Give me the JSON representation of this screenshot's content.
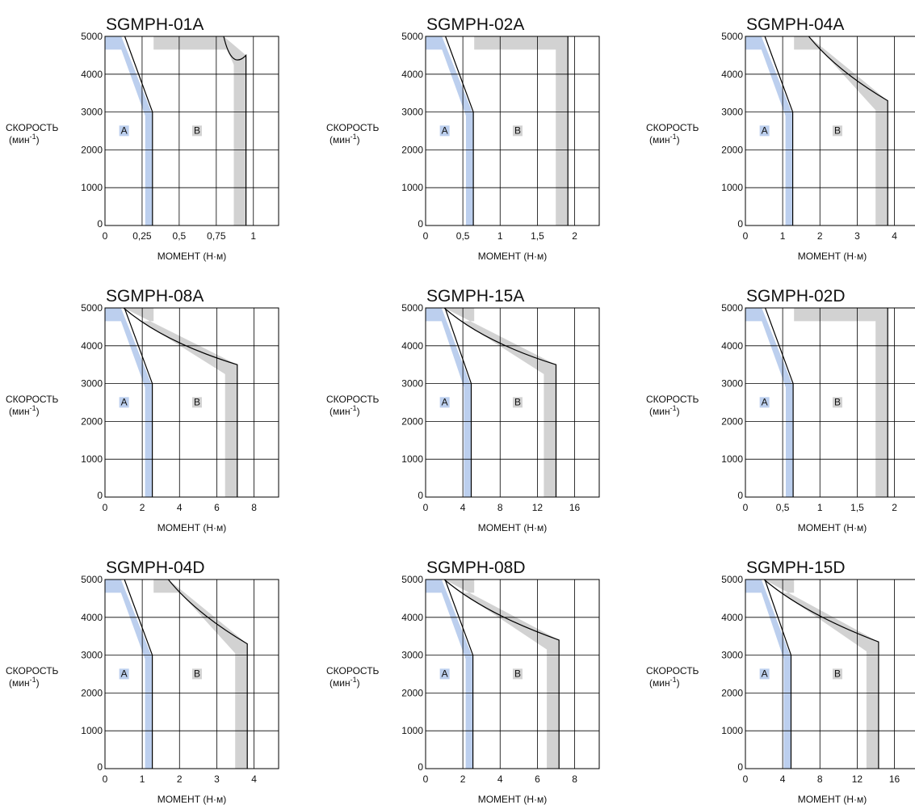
{
  "chart_data": [
    {
      "type": "area",
      "title": "SGMPH-01A",
      "xticks": [
        "0",
        "0,25",
        "0,5",
        "0,75",
        "1"
      ],
      "xtick_values": [
        0,
        0.25,
        0.5,
        0.75,
        1
      ],
      "xlim": [
        0,
        1.17
      ],
      "yticks": [
        "0",
        "1000",
        "2000",
        "3000",
        "4000",
        "5000"
      ],
      "ylim": [
        0,
        5000
      ],
      "ylabel": "СКОРОСТЬ",
      "ylabel_unit": "(мин",
      "ylabel_exp": "-1",
      "ylabel_close": ")",
      "xlabel": "МОМЕНТ (Н·м)",
      "regions": {
        "a": "A",
        "b": "B"
      },
      "rated_torque": 0.32,
      "peak_torque": 0.95,
      "peak_knee_speed": 4500,
      "peak_top_torque": 0.8,
      "rated_top_torque": 0.16,
      "a_top_end": 0.11
    },
    {
      "type": "area",
      "title": "SGMPH-02A",
      "xticks": [
        "0",
        "0,5",
        "1",
        "1,5",
        "2"
      ],
      "xtick_values": [
        0,
        0.5,
        1,
        1.5,
        2
      ],
      "xlim": [
        0,
        2.33
      ],
      "yticks": [
        "0",
        "1000",
        "2000",
        "3000",
        "4000",
        "5000"
      ],
      "ylim": [
        0,
        5000
      ],
      "ylabel": "СКОРОСТЬ",
      "ylabel_unit": "(мин",
      "ylabel_exp": "-1",
      "ylabel_close": ")",
      "xlabel": "МОМЕНТ (Н·м)",
      "regions": {
        "a": "A",
        "b": "B"
      },
      "rated_torque": 0.64,
      "peak_torque": 1.91,
      "peak_knee_speed": 5000,
      "peak_top_torque": 1.91,
      "rated_top_torque": 0.32,
      "a_top_end": 0.22
    },
    {
      "type": "area",
      "title": "SGMPH-04A",
      "xticks": [
        "0",
        "1",
        "2",
        "3",
        "4"
      ],
      "xtick_values": [
        0,
        1,
        2,
        3,
        4
      ],
      "xlim": [
        0,
        4.66
      ],
      "yticks": [
        "0",
        "1000",
        "2000",
        "3000",
        "4000",
        "5000"
      ],
      "ylim": [
        0,
        5000
      ],
      "ylabel": "СКОРОСТЬ",
      "ylabel_unit": "(мин",
      "ylabel_exp": "-1",
      "ylabel_close": ")",
      "xlabel": "МОМЕНТ (Н·м)",
      "regions": {
        "a": "A",
        "b": "B"
      },
      "rated_torque": 1.27,
      "peak_torque": 3.82,
      "peak_knee_speed": 3300,
      "peak_top_torque": 1.7,
      "rated_top_torque": 0.75,
      "a_top_end": 0.43
    },
    {
      "type": "area",
      "title": "SGMPH-08A",
      "xticks": [
        "0",
        "2",
        "4",
        "6",
        "8"
      ],
      "xtick_values": [
        0,
        2,
        4,
        6,
        8
      ],
      "xlim": [
        0,
        9.32
      ],
      "yticks": [
        "0",
        "1000",
        "2000",
        "3000",
        "4000",
        "5000"
      ],
      "ylim": [
        0,
        5000
      ],
      "ylabel": "СКОРОСТЬ",
      "ylabel_unit": "(мин",
      "ylabel_exp": "-1",
      "ylabel_close": ")",
      "xlabel": "МОМЕНТ (Н·м)",
      "regions": {
        "a": "A",
        "b": "B"
      },
      "rated_torque": 2.54,
      "peak_torque": 7.1,
      "peak_knee_speed": 3500,
      "peak_top_torque": 1.0,
      "rated_top_torque": 1.2,
      "a_top_end": 0.86
    },
    {
      "type": "area",
      "title": "SGMPH-15A",
      "xticks": [
        "0",
        "4",
        "8",
        "12",
        "16"
      ],
      "xtick_values": [
        0,
        4,
        8,
        12,
        16
      ],
      "xlim": [
        0,
        18.64
      ],
      "yticks": [
        "0",
        "1000",
        "2000",
        "3000",
        "4000",
        "5000"
      ],
      "ylim": [
        0,
        5000
      ],
      "ylabel": "СКОРОСТЬ",
      "ylabel_unit": "(мин",
      "ylabel_exp": "-1",
      "ylabel_close": ")",
      "xlabel": "МОМЕНТ (Н·м)",
      "regions": {
        "a": "A",
        "b": "B"
      },
      "rated_torque": 4.9,
      "peak_torque": 14.0,
      "peak_knee_speed": 3500,
      "peak_top_torque": 2.0,
      "rated_top_torque": 2.4,
      "a_top_end": 1.72
    },
    {
      "type": "area",
      "title": "SGMPH-02D",
      "xticks": [
        "0",
        "0,5",
        "1",
        "1,5",
        "2"
      ],
      "xtick_values": [
        0,
        0.5,
        1,
        1.5,
        2
      ],
      "xlim": [
        0,
        2.33
      ],
      "yticks": [
        "0",
        "1000",
        "2000",
        "3000",
        "4000",
        "5000"
      ],
      "ylim": [
        0,
        5000
      ],
      "ylabel": "СКОРОСТЬ",
      "ylabel_unit": "(мин",
      "ylabel_exp": "-1",
      "ylabel_close": ")",
      "xlabel": "МОМЕНТ (Н·м)",
      "regions": {
        "a": "A",
        "b": "B"
      },
      "rated_torque": 0.64,
      "peak_torque": 1.91,
      "peak_knee_speed": 5000,
      "peak_top_torque": 1.91,
      "rated_top_torque": 0.32,
      "a_top_end": 0.22
    },
    {
      "type": "area",
      "title": "SGMPH-04D",
      "xticks": [
        "0",
        "1",
        "2",
        "3",
        "4"
      ],
      "xtick_values": [
        0,
        1,
        2,
        3,
        4
      ],
      "xlim": [
        0,
        4.66
      ],
      "yticks": [
        "0",
        "1000",
        "2000",
        "3000",
        "4000",
        "5000"
      ],
      "ylim": [
        0,
        5000
      ],
      "ylabel": "СКОРОСТЬ",
      "ylabel_unit": "(мин",
      "ylabel_exp": "-1",
      "ylabel_close": ")",
      "xlabel": "МОМЕНТ (Н·м)",
      "regions": {
        "a": "A",
        "b": "B"
      },
      "rated_torque": 1.27,
      "peak_torque": 3.82,
      "peak_knee_speed": 3300,
      "peak_top_torque": 1.7,
      "rated_top_torque": 0.75,
      "a_top_end": 0.43
    },
    {
      "type": "area",
      "title": "SGMPH-08D",
      "xticks": [
        "0",
        "2",
        "4",
        "6",
        "8"
      ],
      "xtick_values": [
        0,
        2,
        4,
        6,
        8
      ],
      "xlim": [
        0,
        9.32
      ],
      "yticks": [
        "0",
        "1000",
        "2000",
        "3000",
        "4000",
        "5000"
      ],
      "ylim": [
        0,
        5000
      ],
      "ylabel": "СКОРОСТЬ",
      "ylabel_unit": "(мин",
      "ylabel_exp": "-1",
      "ylabel_close": ")",
      "xlabel": "МОМЕНТ (Н·м)",
      "regions": {
        "a": "A",
        "b": "B"
      },
      "rated_torque": 2.54,
      "peak_torque": 7.16,
      "peak_knee_speed": 3400,
      "peak_top_torque": 1.0,
      "rated_top_torque": 1.2,
      "a_top_end": 0.86
    },
    {
      "type": "area",
      "title": "SGMPH-15D",
      "xticks": [
        "0",
        "4",
        "8",
        "12",
        "16"
      ],
      "xtick_values": [
        0,
        4,
        8,
        12,
        16
      ],
      "xlim": [
        0,
        18.64
      ],
      "yticks": [
        "0",
        "1000",
        "2000",
        "3000",
        "4000",
        "5000"
      ],
      "ylim": [
        0,
        5000
      ],
      "ylabel": "СКОРОСТЬ",
      "ylabel_unit": "(мин",
      "ylabel_exp": "-1",
      "ylabel_close": ")",
      "xlabel": "МОМЕНТ (Н·м)",
      "regions": {
        "a": "A",
        "b": "B"
      },
      "rated_torque": 4.9,
      "peak_torque": 14.3,
      "peak_knee_speed": 3350,
      "peak_top_torque": 2.0,
      "rated_top_torque": 2.4,
      "a_top_end": 1.72
    }
  ],
  "colors": {
    "region_a": "#bccfee",
    "region_b": "#d2d2d2",
    "grid": "#000000",
    "text": "#111111"
  }
}
